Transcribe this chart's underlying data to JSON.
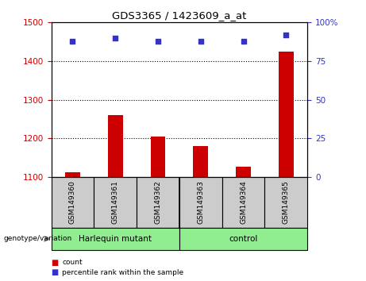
{
  "title": "GDS3365 / 1423609_a_at",
  "samples": [
    "GSM149360",
    "GSM149361",
    "GSM149362",
    "GSM149363",
    "GSM149364",
    "GSM149365"
  ],
  "count_values": [
    1113,
    1260,
    1205,
    1180,
    1127,
    1425
  ],
  "percentile_values": [
    88,
    90,
    88,
    88,
    88,
    92
  ],
  "ylim_left": [
    1100,
    1500
  ],
  "ylim_right": [
    0,
    100
  ],
  "yticks_left": [
    1100,
    1200,
    1300,
    1400,
    1500
  ],
  "yticks_right": [
    0,
    25,
    50,
    75,
    100
  ],
  "ytick_right_labels": [
    "0",
    "25",
    "50",
    "75",
    "100%"
  ],
  "bar_color": "#cc0000",
  "dot_color": "#3333cc",
  "tick_label_box_color": "#cccccc",
  "group_color": "#90EE90",
  "genotype_label": "genotype/variation",
  "group1_label": "Harlequin mutant",
  "group2_label": "control",
  "legend_count_label": "count",
  "legend_pct_label": "percentile rank within the sample",
  "bar_width": 0.35
}
